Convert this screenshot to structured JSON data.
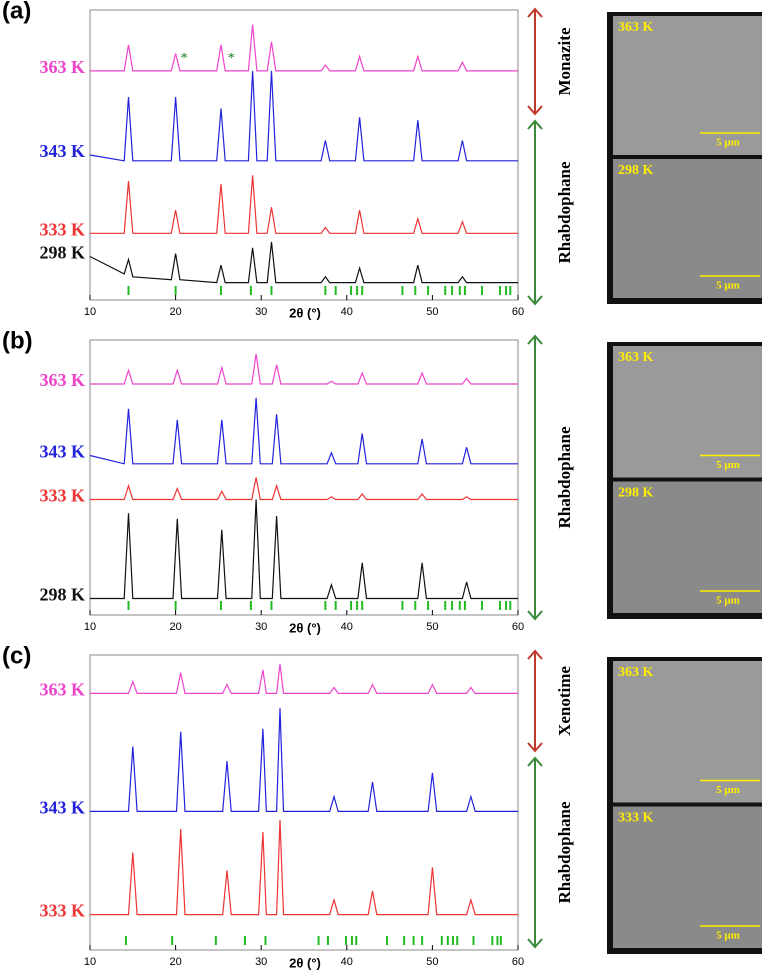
{
  "chart_data": [
    {
      "type": "line",
      "panel_label": "(a)",
      "xlabel": "2θ (°)",
      "xlim": [
        10,
        60
      ],
      "xticks": [
        10,
        20,
        30,
        40,
        50,
        60
      ],
      "ylim": [
        0,
        100
      ],
      "x": [
        10,
        14,
        14.5,
        15,
        19.5,
        20,
        20.5,
        24.8,
        25.3,
        25.8,
        28.5,
        29,
        29.5,
        30.7,
        31.2,
        31.7,
        37,
        37.5,
        38,
        41,
        41.5,
        42,
        47.8,
        48.3,
        48.8,
        53,
        53.5,
        54,
        60
      ],
      "series": [
        {
          "name": "363 K",
          "color": "#ee44cc",
          "values": [
            79,
            79,
            88,
            79,
            79,
            85,
            79,
            79,
            88,
            79,
            79,
            95,
            79,
            79,
            89,
            79,
            79,
            81,
            79,
            79,
            84,
            79,
            79,
            84,
            79,
            79,
            82,
            79,
            79
          ]
        },
        {
          "name": "343 K",
          "color": "#2222dd",
          "values": [
            50,
            48,
            70,
            48,
            48,
            70,
            48,
            48,
            66,
            48,
            48,
            79,
            48,
            48,
            79,
            48,
            48,
            55,
            48,
            48,
            63,
            48,
            48,
            62,
            48,
            48,
            55,
            48,
            48
          ]
        },
        {
          "name": "333 K",
          "color": "#ee3333",
          "values": [
            23,
            23,
            41,
            23,
            23,
            31,
            23,
            23,
            40,
            23,
            23,
            43,
            23,
            23,
            32,
            23,
            23,
            25,
            23,
            23,
            31,
            23,
            23,
            28,
            23,
            23,
            27,
            23,
            23
          ]
        },
        {
          "name": "298 K",
          "color": "#111111",
          "values": [
            15,
            9,
            14,
            8,
            7,
            16,
            7,
            6,
            12,
            6,
            6,
            18,
            6,
            6,
            20,
            6,
            6,
            8,
            6,
            6,
            11,
            6,
            6,
            12,
            6,
            6,
            8,
            6,
            6
          ]
        }
      ],
      "annotations": [
        {
          "text": "*",
          "x": 21
        },
        {
          "text": "*",
          "x": 26.5
        }
      ],
      "reference_peaks": [
        14.5,
        20,
        25.3,
        28.8,
        31.2,
        37.5,
        38.7,
        40.5,
        41.2,
        41.8,
        46.5,
        48,
        49.5,
        51.5,
        52.3,
        53.2,
        53.8,
        55.8,
        57.9,
        58.6,
        59.1
      ],
      "phases": [
        {
          "name": "Monazite",
          "color": "#c0392b"
        },
        {
          "name": "Rhabdophane",
          "color": "#3a8a3a"
        }
      ],
      "images": [
        {
          "label": "363 K",
          "scale": "5 μm"
        },
        {
          "label": "298 K",
          "scale": "5 μm"
        }
      ]
    },
    {
      "type": "line",
      "panel_label": "(b)",
      "xlabel": "2θ (°)",
      "xlim": [
        10,
        60
      ],
      "xticks": [
        10,
        20,
        30,
        40,
        50,
        60
      ],
      "ylim": [
        0,
        100
      ],
      "x": [
        10,
        14,
        14.5,
        15,
        19.7,
        20.2,
        20.7,
        24.9,
        25.4,
        25.9,
        28.9,
        29.4,
        29.9,
        31.3,
        31.8,
        32.3,
        37.7,
        38.2,
        38.7,
        41.3,
        41.8,
        42.3,
        48.3,
        48.8,
        49.3,
        53.5,
        54,
        54.5,
        60
      ],
      "series": [
        {
          "name": "363 K",
          "color": "#ee44cc",
          "values": [
            84,
            84,
            89,
            84,
            84,
            89,
            84,
            84,
            90,
            84,
            84,
            95,
            84,
            84,
            91,
            84,
            84,
            85,
            84,
            84,
            88,
            84,
            84,
            88,
            84,
            84,
            86,
            84,
            84
          ]
        },
        {
          "name": "343 K",
          "color": "#2222dd",
          "values": [
            58,
            55,
            75,
            55,
            55,
            71,
            55,
            55,
            71,
            55,
            55,
            79,
            55,
            55,
            73,
            55,
            55,
            59,
            55,
            55,
            66,
            55,
            55,
            64,
            55,
            55,
            61,
            55,
            55
          ]
        },
        {
          "name": "333 K",
          "color": "#ee3333",
          "values": [
            42,
            42,
            47,
            42,
            42,
            46,
            42,
            42,
            45,
            42,
            42,
            50,
            42,
            42,
            47,
            42,
            42,
            43,
            42,
            42,
            44,
            42,
            42,
            44,
            42,
            42,
            43,
            42,
            42
          ]
        },
        {
          "name": "298 K",
          "color": "#111111",
          "values": [
            6,
            6,
            37,
            6,
            6,
            35,
            6,
            6,
            31,
            6,
            6,
            42,
            6,
            6,
            36,
            6,
            6,
            11,
            6,
            6,
            19,
            6,
            6,
            19,
            6,
            6,
            12,
            6,
            6
          ]
        }
      ],
      "reference_peaks": [
        14.5,
        20,
        25.3,
        28.8,
        31.2,
        37.5,
        38.7,
        40.5,
        41.2,
        41.8,
        46.5,
        48,
        49.5,
        51.5,
        52.3,
        53.2,
        53.8,
        55.8,
        57.9,
        58.6,
        59.1
      ],
      "phases": [
        {
          "name": "Rhabdophane",
          "color": "#3a8a3a"
        }
      ],
      "images": [
        {
          "label": "363 K",
          "scale": "5 μm"
        },
        {
          "label": "298 K",
          "scale": "5 μm"
        }
      ]
    },
    {
      "type": "line",
      "panel_label": "(c)",
      "xlabel": "2θ (°)",
      "xlim": [
        10,
        60
      ],
      "xticks": [
        10,
        20,
        30,
        40,
        50,
        60
      ],
      "ylim": [
        0,
        100
      ],
      "x": [
        10,
        14.5,
        15,
        15.5,
        20.1,
        20.6,
        21.1,
        25.5,
        26,
        26.5,
        29.7,
        30.2,
        30.6,
        31.8,
        32.2,
        32.6,
        38,
        38.5,
        39,
        42.5,
        43,
        43.5,
        49.5,
        50,
        50.5,
        54,
        54.5,
        55,
        60
      ],
      "series": [
        {
          "name": "363 K",
          "color": "#ee44cc",
          "values": [
            87,
            87,
            91,
            87,
            87,
            94,
            87,
            87,
            90,
            87,
            87,
            95,
            87,
            87,
            97,
            87,
            87,
            89,
            87,
            87,
            90,
            87,
            87,
            90,
            87,
            87,
            89,
            87,
            87
          ]
        },
        {
          "name": "343 K",
          "color": "#2222dd",
          "values": [
            47,
            47,
            69,
            47,
            47,
            74,
            47,
            47,
            64,
            47,
            47,
            75,
            47,
            47,
            82,
            47,
            47,
            52,
            47,
            47,
            57,
            47,
            47,
            60,
            47,
            47,
            52,
            47,
            47
          ]
        },
        {
          "name": "333 K",
          "color": "#ee3333",
          "values": [
            12,
            12,
            33,
            12,
            12,
            41,
            12,
            12,
            27,
            12,
            12,
            40,
            12,
            12,
            44,
            12,
            12,
            17,
            12,
            12,
            20,
            12,
            12,
            28,
            12,
            12,
            17,
            12,
            12
          ]
        }
      ],
      "reference_peaks": [
        14.2,
        19.6,
        24.7,
        28.1,
        30.5,
        36.7,
        37.8,
        39.9,
        40.6,
        41.1,
        44.7,
        46.7,
        47.8,
        48.8,
        51.1,
        51.8,
        52.4,
        52.9,
        54.8,
        57,
        57.6,
        58
      ],
      "phases": [
        {
          "name": "Xenotime",
          "color": "#c0392b"
        },
        {
          "name": "Rhabdophane",
          "color": "#3a8a3a"
        }
      ],
      "images": [
        {
          "label": "363 K",
          "scale": "5 μm"
        },
        {
          "label": "333 K",
          "scale": "5 μm"
        }
      ]
    }
  ]
}
